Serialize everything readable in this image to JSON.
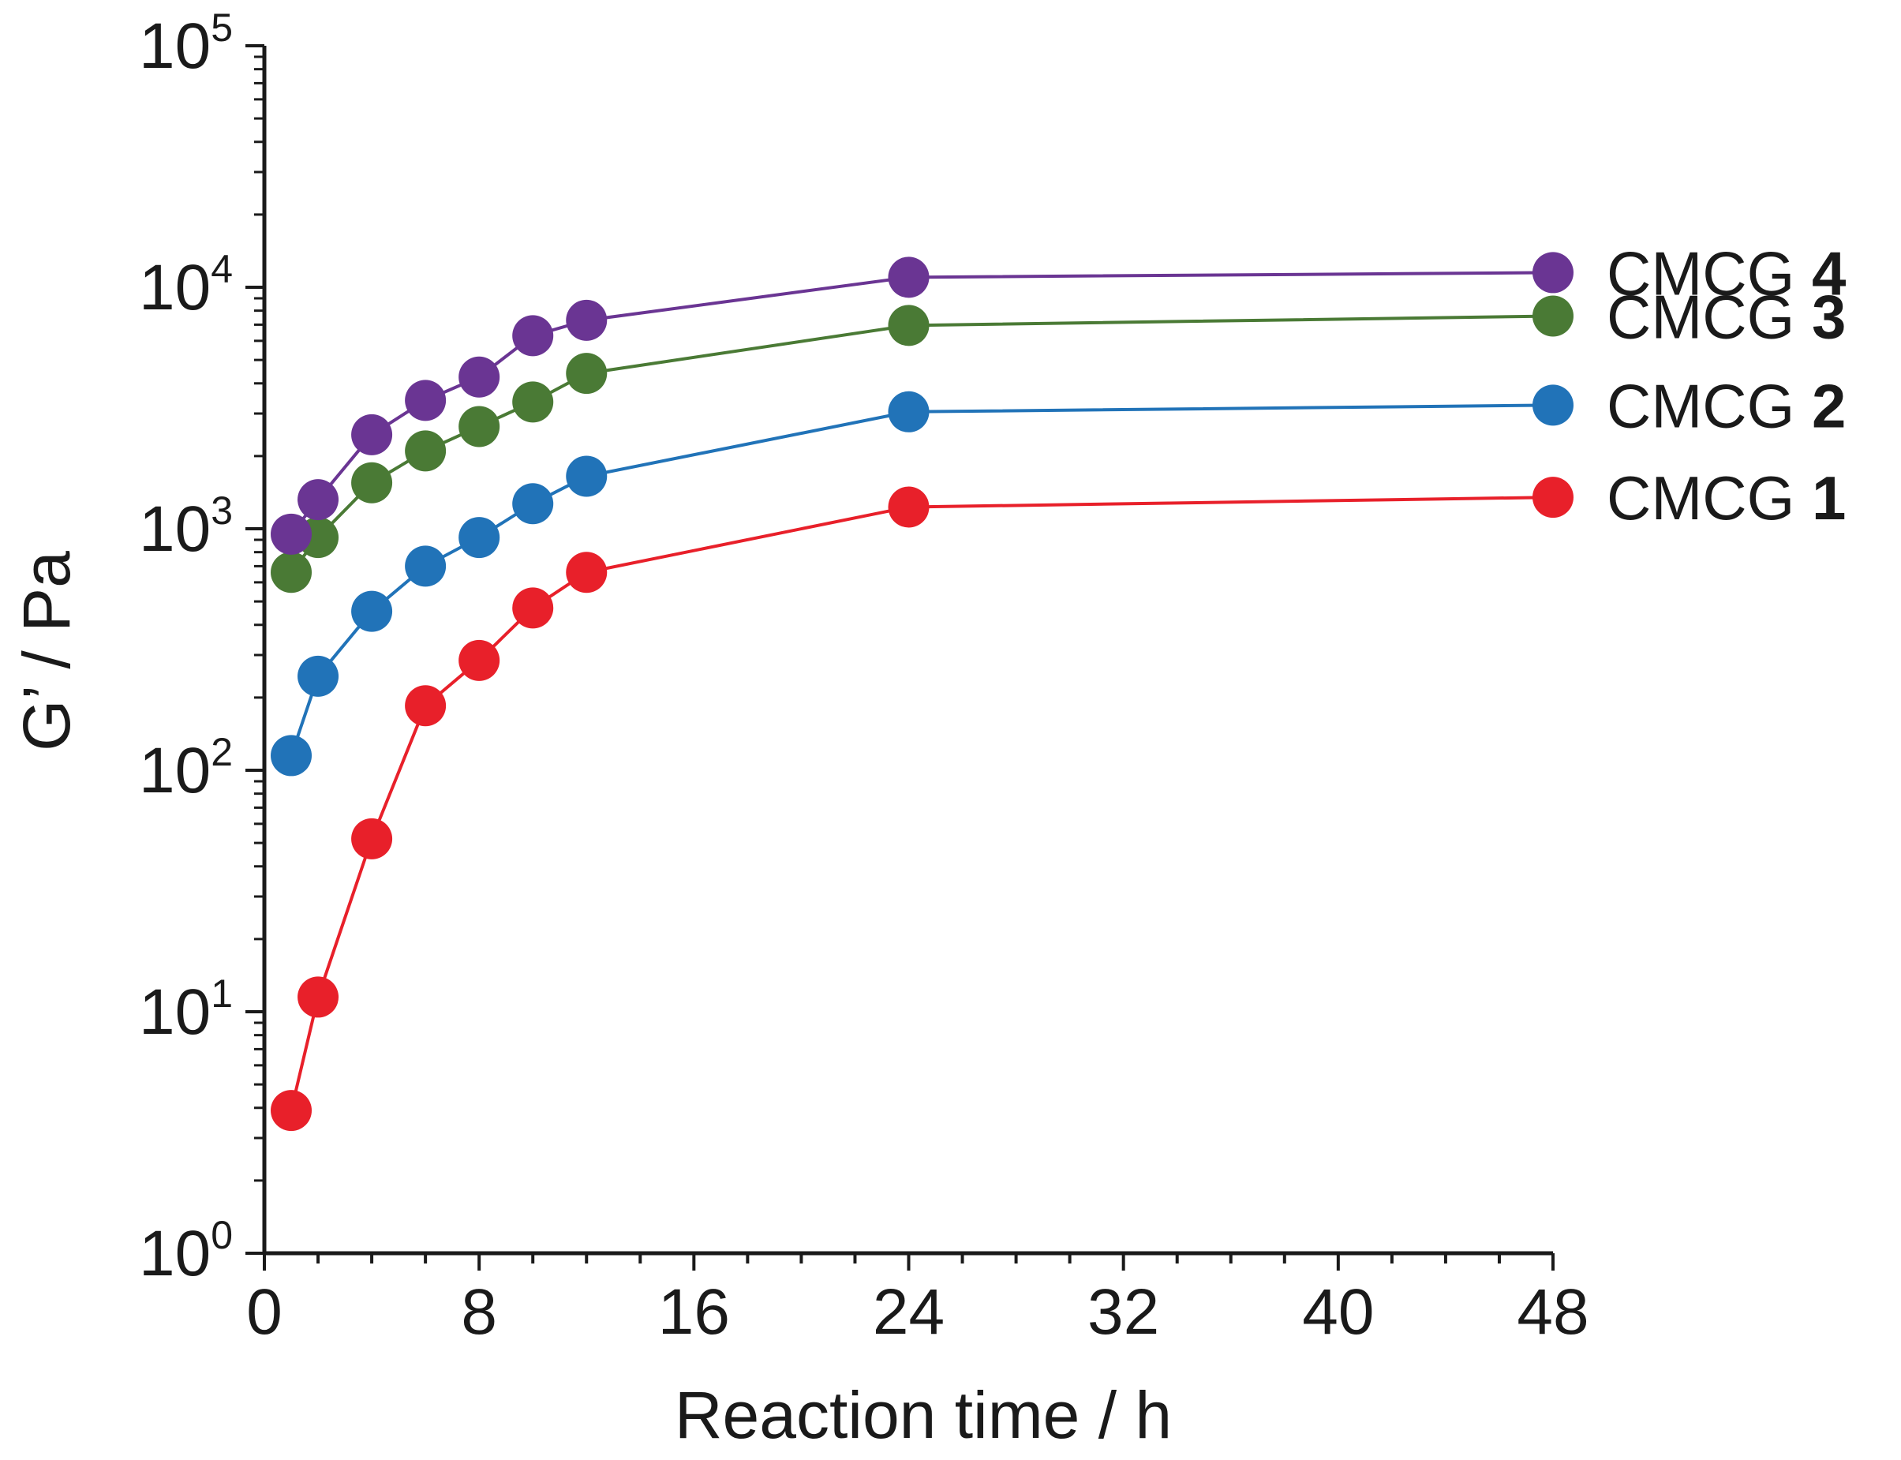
{
  "chart_data": {
    "type": "line",
    "xlabel": "Reaction time / h",
    "ylabel": "G’ / Pa",
    "y_scale": "log",
    "xlim": [
      0,
      48
    ],
    "ylim": [
      1,
      100000
    ],
    "x_ticks": [
      0,
      8,
      16,
      24,
      32,
      40,
      48
    ],
    "x_tick_labels": [
      "0",
      "8",
      "16",
      "24",
      "32",
      "40",
      "48"
    ],
    "y_ticks": [
      1,
      10,
      100,
      1000,
      10000,
      100000
    ],
    "y_tick_labels": [
      {
        "base": "10",
        "exp": "0"
      },
      {
        "base": "10",
        "exp": "1"
      },
      {
        "base": "10",
        "exp": "2"
      },
      {
        "base": "10",
        "exp": "3"
      },
      {
        "base": "10",
        "exp": "4"
      },
      {
        "base": "10",
        "exp": "5"
      }
    ],
    "grid": false,
    "legend": "series labels at right end of lines",
    "series": [
      {
        "name": "CMCG 1",
        "label_prefix": "CMCG",
        "label_number": "1",
        "color": "#e8202a",
        "x": [
          1,
          2,
          4,
          6,
          8,
          10,
          12,
          24,
          48
        ],
        "y": [
          3.9,
          11.5,
          52,
          185,
          285,
          470,
          660,
          1230,
          1350
        ]
      },
      {
        "name": "CMCG 2",
        "label_prefix": "CMCG",
        "label_number": "2",
        "color": "#2173b8",
        "x": [
          1,
          2,
          4,
          6,
          8,
          10,
          12,
          24,
          48
        ],
        "y": [
          115,
          245,
          455,
          700,
          920,
          1270,
          1650,
          3050,
          3250
        ]
      },
      {
        "name": "CMCG 3",
        "label_prefix": "CMCG",
        "label_number": "3",
        "color": "#4a7a35",
        "x": [
          1,
          2,
          4,
          6,
          8,
          10,
          12,
          24,
          48
        ],
        "y": [
          660,
          920,
          1550,
          2100,
          2650,
          3350,
          4400,
          6950,
          7600
        ]
      },
      {
        "name": "CMCG 4",
        "label_prefix": "CMCG",
        "label_number": "4",
        "color": "#6a3593",
        "x": [
          1,
          2,
          4,
          6,
          8,
          10,
          12,
          24,
          48
        ],
        "y": [
          950,
          1320,
          2450,
          3400,
          4250,
          6300,
          7300,
          11000,
          11500
        ]
      }
    ]
  }
}
